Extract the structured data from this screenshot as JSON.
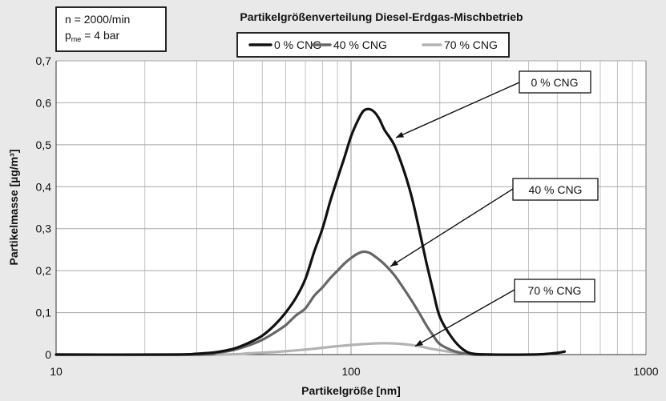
{
  "chart_data": {
    "type": "line",
    "title": "Partikelgrößenverteilung Diesel-Erdgas-Mischbetrieb",
    "xlabel": "Partikelgröße [nm]",
    "ylabel": "Partikelmasse [µg/m³]",
    "x_scale": "log",
    "xlim": [
      10,
      1000
    ],
    "ylim": [
      0,
      0.7
    ],
    "x_tick_labels": [
      "10",
      "100",
      "1000"
    ],
    "y_tick_labels": [
      "0",
      "0,1",
      "0,2",
      "0,3",
      "0,4",
      "0,5",
      "0,6",
      "0,7"
    ],
    "grid": true,
    "legend_position": "top-center",
    "info_box": {
      "line1": "n = 2000/min",
      "line2_main": "p",
      "line2_sub": "me",
      "line2_rest": " = 4 bar"
    },
    "series": [
      {
        "name": "0 % CNG",
        "color": "#111111",
        "x": [
          10,
          25,
          30,
          35,
          40,
          45,
          50,
          55,
          60,
          65,
          70,
          75,
          80,
          85,
          90,
          95,
          100,
          105,
          110,
          115,
          120,
          125,
          130,
          140,
          150,
          160,
          170,
          180,
          190,
          200,
          220,
          240,
          260,
          300,
          400,
          450,
          500,
          530
        ],
        "y": [
          0.0,
          0.0,
          0.002,
          0.006,
          0.014,
          0.028,
          0.045,
          0.07,
          0.1,
          0.135,
          0.18,
          0.245,
          0.3,
          0.365,
          0.42,
          0.47,
          0.52,
          0.555,
          0.58,
          0.585,
          0.578,
          0.56,
          0.535,
          0.5,
          0.445,
          0.38,
          0.3,
          0.22,
          0.15,
          0.09,
          0.04,
          0.012,
          0.002,
          0.0,
          0.0,
          0.001,
          0.004,
          0.007
        ]
      },
      {
        "name": "40 % CNG",
        "color": "#666666",
        "x": [
          10,
          30,
          35,
          40,
          45,
          50,
          55,
          60,
          65,
          70,
          75,
          80,
          85,
          90,
          95,
          100,
          105,
          110,
          115,
          120,
          130,
          140,
          150,
          160,
          170,
          180,
          190,
          200,
          220,
          240,
          260,
          300
        ],
        "y": [
          0.0,
          0.0,
          0.004,
          0.011,
          0.022,
          0.035,
          0.052,
          0.07,
          0.093,
          0.11,
          0.14,
          0.16,
          0.182,
          0.2,
          0.217,
          0.23,
          0.24,
          0.245,
          0.243,
          0.235,
          0.215,
          0.19,
          0.16,
          0.13,
          0.1,
          0.07,
          0.045,
          0.025,
          0.01,
          0.003,
          0.0,
          0.0
        ]
      },
      {
        "name": "70 % CNG",
        "color": "#b3b3b3",
        "x": [
          10,
          35,
          45,
          55,
          65,
          75,
          90,
          110,
          130,
          150,
          170,
          190,
          220,
          260,
          300
        ],
        "y": [
          0.0,
          0.0,
          0.003,
          0.006,
          0.01,
          0.014,
          0.02,
          0.025,
          0.027,
          0.025,
          0.02,
          0.013,
          0.006,
          0.001,
          0.0
        ]
      }
    ],
    "annotations": [
      {
        "text": "0 % CNG",
        "series": 0,
        "target_x": 142,
        "target_y": 0.517
      },
      {
        "text": "40 % CNG",
        "series": 1,
        "target_x": 136,
        "target_y": 0.21
      },
      {
        "text": "70 % CNG",
        "series": 2,
        "target_x": 165,
        "target_y": 0.02
      }
    ]
  }
}
